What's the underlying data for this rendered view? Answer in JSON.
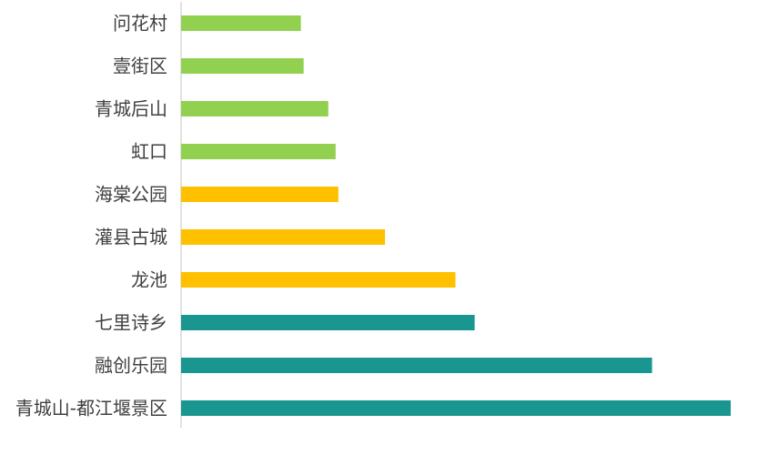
{
  "chart_data": {
    "type": "bar",
    "orientation": "horizontal",
    "title": "",
    "xlabel": "",
    "ylabel": "",
    "grid": false,
    "legend": "none",
    "categories": [
      "问花村",
      "壹街区",
      "青城后山",
      "虹口",
      "海棠公园",
      "灌县古城",
      "龙池",
      "七里诗乡",
      "融创乐园",
      "青城山-都江堰景区"
    ],
    "values": [
      131,
      134,
      161,
      169,
      172,
      223,
      300,
      321,
      515,
      601
    ],
    "bar_colors": [
      "#92d050",
      "#92d050",
      "#92d050",
      "#92d050",
      "#ffc000",
      "#ffc000",
      "#ffc000",
      "#1a9690",
      "#1a9690",
      "#1a9690"
    ],
    "xlim": [
      0,
      601
    ]
  }
}
